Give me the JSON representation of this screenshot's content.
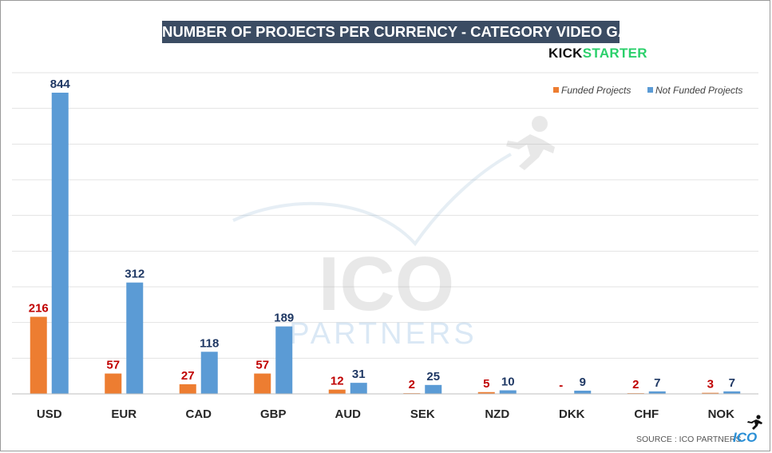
{
  "chart_data": {
    "type": "bar",
    "title": "NUMBER OF PROJECTS PER CURRENCY - CATEGORY VIDEO GAMES",
    "xlabel": "",
    "ylabel": "",
    "ylim": [
      0,
      900
    ],
    "grid": true,
    "legend_position": "top-right",
    "categories": [
      "USD",
      "EUR",
      "CAD",
      "GBP",
      "AUD",
      "SEK",
      "NZD",
      "DKK",
      "CHF",
      "NOK"
    ],
    "series": [
      {
        "name": "Funded Projects",
        "color": "#ed7d31",
        "label_color": "#c00000",
        "values": [
          216,
          57,
          27,
          57,
          12,
          2,
          5,
          0,
          2,
          3
        ],
        "labels": [
          "216",
          "57",
          "27",
          "57",
          "12",
          "2",
          "5",
          "-",
          "2",
          "3"
        ]
      },
      {
        "name": "Not Funded Projects",
        "color": "#5b9bd5",
        "label_color": "#1f3864",
        "values": [
          844,
          312,
          118,
          189,
          31,
          25,
          10,
          9,
          7,
          7
        ],
        "labels": [
          "844",
          "312",
          "118",
          "189",
          "31",
          "25",
          "10",
          "9",
          "7",
          "7"
        ]
      }
    ]
  },
  "brand": {
    "kick": "KICK",
    "starter": "STARTER"
  },
  "watermark": {
    "icon": "runner-icon",
    "line1": "ICO",
    "line2": "PARTNERS"
  },
  "footer": {
    "source": "SOURCE : ICO PARTNERS",
    "logo": "ICO",
    "icon": "runner-icon"
  }
}
